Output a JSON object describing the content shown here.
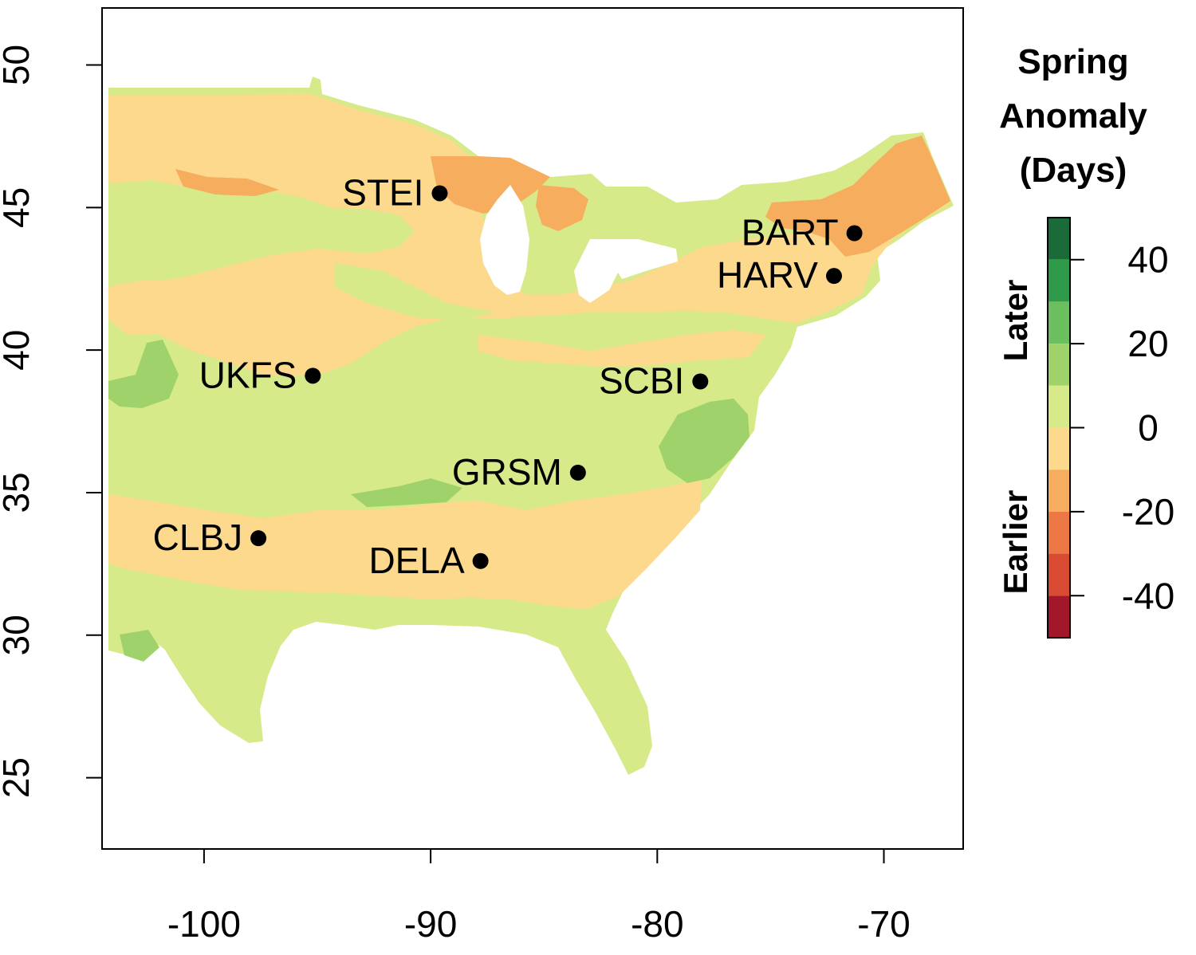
{
  "map": {
    "x_axis": {
      "ticks": [
        -100,
        -90,
        -80,
        -70
      ],
      "range": [
        -104.5,
        -66.5
      ]
    },
    "y_axis": {
      "ticks": [
        25,
        30,
        35,
        40,
        45,
        50
      ],
      "range": [
        22.5,
        52
      ]
    },
    "sites": [
      {
        "name": "STEI",
        "lon": -89.6,
        "lat": 45.5,
        "label_side": "left"
      },
      {
        "name": "BART",
        "lon": -71.3,
        "lat": 44.1,
        "label_side": "left"
      },
      {
        "name": "HARV",
        "lon": -72.2,
        "lat": 42.6,
        "label_side": "left"
      },
      {
        "name": "UKFS",
        "lon": -95.2,
        "lat": 39.1,
        "label_side": "left"
      },
      {
        "name": "SCBI",
        "lon": -78.1,
        "lat": 38.9,
        "label_side": "left"
      },
      {
        "name": "GRSM",
        "lon": -83.5,
        "lat": 35.7,
        "label_side": "left"
      },
      {
        "name": "CLBJ",
        "lon": -97.6,
        "lat": 33.4,
        "label_side": "left"
      },
      {
        "name": "DELA",
        "lon": -87.8,
        "lat": 32.6,
        "label_side": "left"
      }
    ]
  },
  "legend": {
    "title_lines": [
      "Spring",
      "Anomaly",
      "(Days)"
    ],
    "later_label": "Later",
    "earlier_label": "Earlier",
    "ticks": [
      40,
      20,
      0,
      -20,
      -40
    ],
    "range": [
      -50,
      50
    ],
    "bins": [
      {
        "from": 40,
        "to": 50,
        "color": "#1a6b37"
      },
      {
        "from": 30,
        "to": 40,
        "color": "#2e9a4a"
      },
      {
        "from": 20,
        "to": 30,
        "color": "#6bbf5f"
      },
      {
        "from": 10,
        "to": 20,
        "color": "#9fd26a"
      },
      {
        "from": 0,
        "to": 10,
        "color": "#d6ea8a"
      },
      {
        "from": -10,
        "to": 0,
        "color": "#fcd98c"
      },
      {
        "from": -20,
        "to": -10,
        "color": "#f6ad5d"
      },
      {
        "from": -30,
        "to": -20,
        "color": "#ee7746"
      },
      {
        "from": -40,
        "to": -30,
        "color": "#d94a32"
      },
      {
        "from": -50,
        "to": -40,
        "color": "#a3172a"
      }
    ]
  },
  "colors": {
    "near_zero_positive": "#d6ea8a",
    "near_zero_negative": "#fcd98c",
    "mild_earlier": "#f6ad5d",
    "mild_later": "#9fd26a"
  }
}
